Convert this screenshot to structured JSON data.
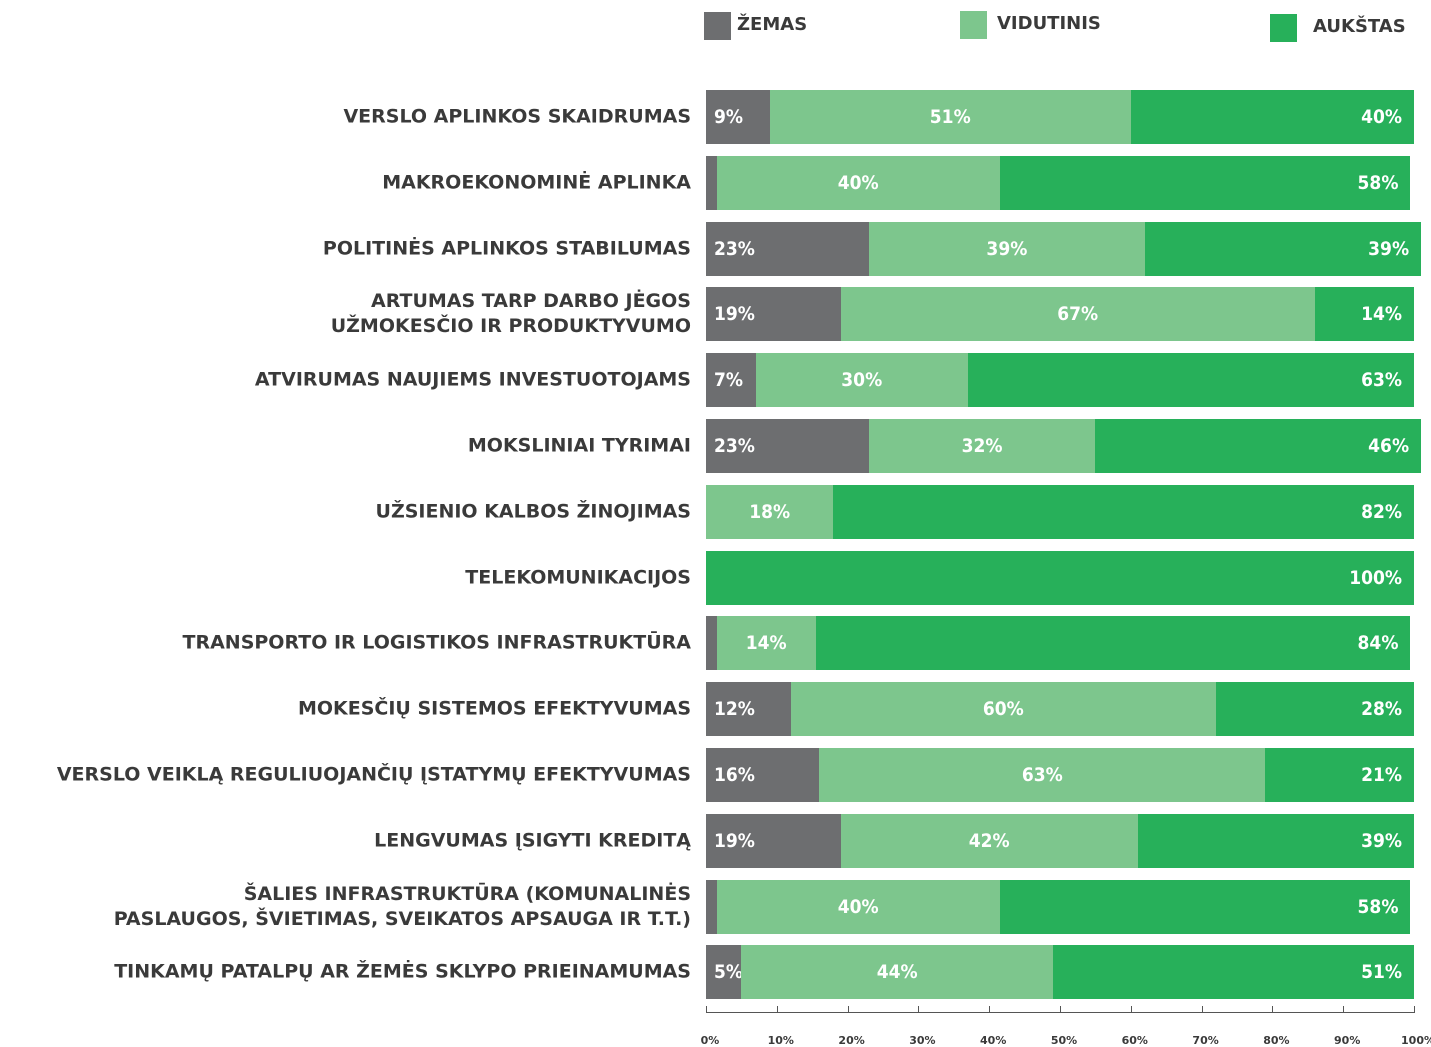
{
  "chart_data": {
    "type": "stacked-bar-horizontal",
    "categories": [
      "VERSLO APLINKOS SKAIDRUMAS",
      "MAKROEKONOMINĖ APLINKA",
      "POLITINĖS APLINKOS STABILUMAS",
      "ARTUMAS TARP DARBO JĖGOS\nUŽMOKESČIO IR PRODUKTYVUMO",
      "ATVIRUMAS NAUJIEMS INVESTUOTOJAMS",
      "MOKSLINIAI TYRIMAI",
      "UŽSIENIO KALBOS ŽINOJIMAS",
      "TELEKOMUNIKACIJOS",
      "TRANSPORTO IR LOGISTIKOS INFRASTRUKTŪRA",
      "MOKESČIŲ SISTEMOS EFEKTYVUMAS",
      "VERSLO VEIKLĄ REGULIUOJANČIŲ ĮSTATYMŲ EFEKTYVUMAS",
      "LENGVUMAS ĮSIGYTI KREDITĄ",
      "ŠALIES INFRASTRUKTŪRA (KOMUNALINĖS\nPASLAUGOS, ŠVIETIMAS, SVEIKATOS APSAUGA IR T.T.)",
      "TINKAMŲ PATALPŲ AR ŽEMĖS SKLYPO PRIEINAMUMAS"
    ],
    "series": [
      {
        "name": "ŽEMAS",
        "color": "#6d6e70",
        "values": [
          9,
          1.5,
          23,
          19,
          7,
          23,
          0,
          0,
          1.5,
          12,
          16,
          19,
          1.5,
          5
        ],
        "value_labels": [
          "9%",
          null,
          "23%",
          "19%",
          "7%",
          "23%",
          null,
          null,
          null,
          "12%",
          "16%",
          "19%",
          null,
          "5%"
        ]
      },
      {
        "name": "VIDUTINIS",
        "color": "#7dc68d",
        "values": [
          51,
          40,
          39,
          67,
          30,
          32,
          18,
          0,
          14,
          60,
          63,
          42,
          40,
          44
        ],
        "value_labels": [
          "51%",
          "40%",
          "39%",
          "67%",
          "30%",
          "32%",
          "18%",
          null,
          "14%",
          "60%",
          "63%",
          "42%",
          "40%",
          "44%"
        ]
      },
      {
        "name": "AUKŠTAS",
        "color": "#27b05a",
        "values": [
          40,
          58,
          39,
          14,
          63,
          46,
          82,
          100,
          84,
          28,
          21,
          39,
          58,
          51
        ],
        "value_labels": [
          "40%",
          "58%",
          "39%",
          "14%",
          "63%",
          "46%",
          "82%",
          "100%",
          "84%",
          "28%",
          "21%",
          "39%",
          "58%",
          "51%"
        ]
      }
    ],
    "xlim": [
      0,
      100
    ],
    "xticks": [
      {
        "value": 0,
        "label": "0%"
      },
      {
        "value": 10,
        "label": "10%"
      },
      {
        "value": 20,
        "label": "20%"
      },
      {
        "value": 30,
        "label": "30%"
      },
      {
        "value": 40,
        "label": "40%"
      },
      {
        "value": 50,
        "label": "50%"
      },
      {
        "value": 60,
        "label": "60%"
      },
      {
        "value": 70,
        "label": "70%"
      },
      {
        "value": 80,
        "label": "80%"
      },
      {
        "value": 90,
        "label": "90%"
      },
      {
        "value": 100,
        "label": "100%"
      }
    ],
    "legend": "top"
  }
}
